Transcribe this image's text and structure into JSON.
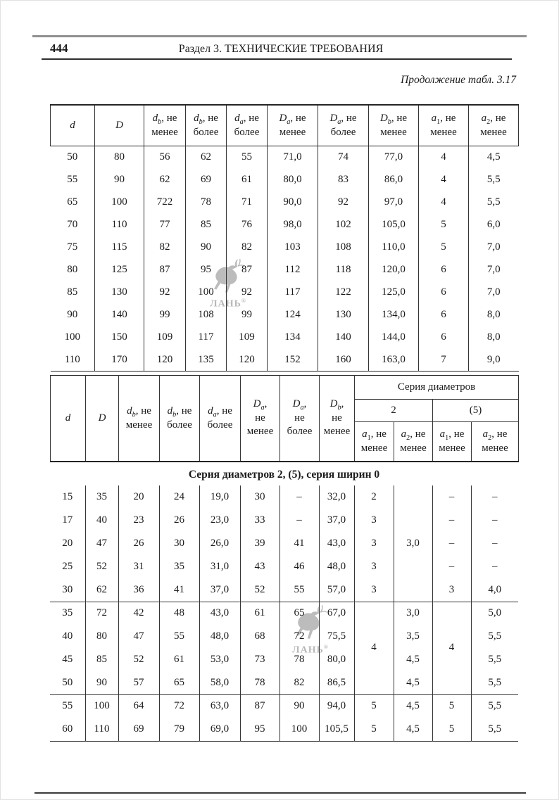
{
  "page": {
    "number": "444",
    "section_header": "Раздел 3. ТЕХНИЧЕСКИЕ ТРЕБОВАНИЯ",
    "continuation": "Продолжение табл. 3.17"
  },
  "watermark": {
    "text": "ЛАНЬ",
    "reg": "®"
  },
  "table1": {
    "columns": [
      {
        "base": "d",
        "lines": []
      },
      {
        "base": "D",
        "lines": []
      },
      {
        "base": "d",
        "sub": "b",
        "lines": [
          ", не",
          "менее"
        ]
      },
      {
        "base": "d",
        "sub": "b",
        "lines": [
          ", не",
          "более"
        ]
      },
      {
        "base": "d",
        "sub": "a",
        "lines": [
          ", не",
          "более"
        ]
      },
      {
        "base": "D",
        "sub": "a",
        "lines": [
          ", не",
          "менее"
        ]
      },
      {
        "base": "D",
        "sub": "a",
        "lines": [
          ", не",
          "более"
        ]
      },
      {
        "base": "D",
        "sub": "b",
        "lines": [
          ", не",
          "менее"
        ]
      },
      {
        "base": "a",
        "sub": "1",
        "lines": [
          ", не",
          "менее"
        ]
      },
      {
        "base": "a",
        "sub": "2",
        "lines": [
          ", не",
          "менее"
        ]
      }
    ],
    "rows": [
      [
        "50",
        "80",
        "56",
        "62",
        "55",
        "71,0",
        "74",
        "77,0",
        "4",
        "4,5"
      ],
      [
        "55",
        "90",
        "62",
        "69",
        "61",
        "80,0",
        "83",
        "86,0",
        "4",
        "5,5"
      ],
      [
        "65",
        "100",
        "722",
        "78",
        "71",
        "90,0",
        "92",
        "97,0",
        "4",
        "5,5"
      ],
      [
        "70",
        "110",
        "77",
        "85",
        "76",
        "98,0",
        "102",
        "105,0",
        "5",
        "6,0"
      ],
      [
        "75",
        "115",
        "82",
        "90",
        "82",
        "103",
        "108",
        "110,0",
        "5",
        "7,0"
      ],
      [
        "80",
        "125",
        "87",
        "95",
        "87",
        "112",
        "118",
        "120,0",
        "6",
        "7,0"
      ],
      [
        "85",
        "130",
        "92",
        "100",
        "92",
        "117",
        "122",
        "125,0",
        "6",
        "7,0"
      ],
      [
        "90",
        "140",
        "99",
        "108",
        "99",
        "124",
        "130",
        "134,0",
        "6",
        "8,0"
      ],
      [
        "100",
        "150",
        "109",
        "117",
        "109",
        "134",
        "140",
        "144,0",
        "6",
        "8,0"
      ],
      [
        "110",
        "170",
        "120",
        "135",
        "120",
        "152",
        "160",
        "163,0",
        "7",
        "9,0"
      ]
    ]
  },
  "table2": {
    "columns": [
      {
        "base": "d",
        "lines": []
      },
      {
        "base": "D",
        "lines": []
      },
      {
        "base": "d",
        "sub": "b",
        "lines": [
          ", не",
          "менее"
        ]
      },
      {
        "base": "d",
        "sub": "b",
        "lines": [
          ", не",
          "более"
        ]
      },
      {
        "base": "d",
        "sub": "a",
        "lines": [
          ", не",
          "более"
        ]
      },
      {
        "base": "D",
        "sub": "a",
        "lines": [
          ",",
          "не",
          "менее"
        ]
      },
      {
        "base": "D",
        "sub": "a",
        "lines": [
          ",",
          "не",
          "более"
        ]
      },
      {
        "base": "D",
        "sub": "b",
        "lines": [
          ",",
          "не",
          "менее"
        ]
      }
    ],
    "series_group_title": "Серия диаметров",
    "series": [
      "2",
      "(5)"
    ],
    "leaf_columns": [
      {
        "base": "a",
        "sub": "1",
        "lines": [
          ", не",
          "менее"
        ]
      },
      {
        "base": "a",
        "sub": "2",
        "lines": [
          ", не",
          "менее"
        ]
      },
      {
        "base": "a",
        "sub": "1",
        "lines": [
          ", не",
          "менее"
        ]
      },
      {
        "base": "a",
        "sub": "2",
        "lines": [
          ", не",
          "менее"
        ]
      }
    ],
    "section_title": "Серия диаметров 2, (5), серия ширин 0",
    "group_starts": [
      5,
      9
    ],
    "rows": [
      [
        "15",
        "35",
        "20",
        "24",
        "19,0",
        "30",
        "–",
        "32,0",
        "2",
        "",
        "–",
        "–"
      ],
      [
        "17",
        "40",
        "23",
        "26",
        "23,0",
        "33",
        "–",
        "37,0",
        "3",
        "",
        "–",
        "–"
      ],
      [
        "20",
        "47",
        "26",
        "30",
        "26,0",
        "39",
        "41",
        "43,0",
        "3",
        "3,0",
        "–",
        "–"
      ],
      [
        "25",
        "52",
        "31",
        "35",
        "31,0",
        "43",
        "46",
        "48,0",
        "3",
        "",
        "–",
        "–"
      ],
      [
        "30",
        "62",
        "36",
        "41",
        "37,0",
        "52",
        "55",
        "57,0",
        "3",
        "",
        "3",
        "4,0"
      ],
      [
        "35",
        "72",
        "42",
        "48",
        "43,0",
        "61",
        "65",
        "67,0",
        {
          "v": "4",
          "rs": 4
        },
        "3,0",
        {
          "v": "4",
          "rs": 4
        },
        "5,0"
      ],
      [
        "40",
        "80",
        "47",
        "55",
        "48,0",
        "68",
        "72",
        "75,5",
        null,
        "3,5",
        null,
        "5,5"
      ],
      [
        "45",
        "85",
        "52",
        "61",
        "53,0",
        "73",
        "78",
        "80,0",
        null,
        "4,5",
        null,
        "5,5"
      ],
      [
        "50",
        "90",
        "57",
        "65",
        "58,0",
        "78",
        "82",
        "86,5",
        null,
        "4,5",
        null,
        "5,5"
      ],
      [
        "55",
        "100",
        "64",
        "72",
        "63,0",
        "87",
        "90",
        "94,0",
        "5",
        "4,5",
        "5",
        "5,5"
      ],
      [
        "60",
        "110",
        "69",
        "79",
        "69,0",
        "95",
        "100",
        "105,5",
        "5",
        "4,5",
        "5",
        "5,5"
      ]
    ]
  }
}
